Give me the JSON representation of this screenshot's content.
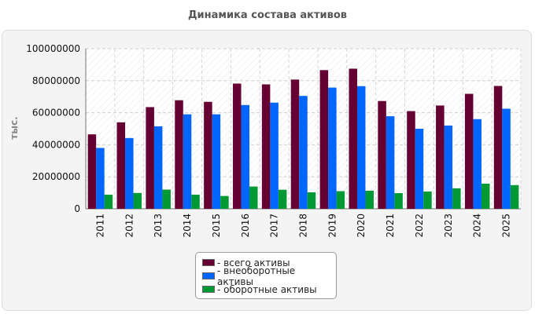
{
  "title": "Динамика состава активов",
  "chart_data": {
    "type": "bar",
    "title": "Динамика состава активов",
    "xlabel": "",
    "ylabel": "тыс.",
    "ylim": [
      0,
      100000000
    ],
    "yticks": [
      "0",
      "20000000",
      "40000000",
      "60000000",
      "80000000",
      "100000000"
    ],
    "categories": [
      "2011",
      "2012",
      "2013",
      "2014",
      "2015",
      "2016",
      "2017",
      "2018",
      "2019",
      "2020",
      "2021",
      "2022",
      "2023",
      "2024",
      "2025"
    ],
    "series": [
      {
        "name": "- всего активы",
        "color": "#660033",
        "values": [
          46500000,
          54000000,
          63500000,
          67800000,
          66800000,
          78200000,
          77700000,
          80700000,
          86600000,
          87500000,
          67300000,
          61000000,
          64500000,
          71800000,
          76700000
        ]
      },
      {
        "name": "- внеоборотные активы",
        "color": "#0066ff",
        "values": [
          38000000,
          44200000,
          51500000,
          59000000,
          59000000,
          64800000,
          66300000,
          70500000,
          75700000,
          76600000,
          57800000,
          50000000,
          52000000,
          56000000,
          62500000
        ]
      },
      {
        "name": "- оборотные активы",
        "color": "#009933",
        "values": [
          8800000,
          9900000,
          12000000,
          8800000,
          8000000,
          13900000,
          11900000,
          10300000,
          11000000,
          11300000,
          9800000,
          10800000,
          12800000,
          15700000,
          14800000
        ]
      }
    ],
    "grid": true,
    "legend_position": "bottom"
  }
}
